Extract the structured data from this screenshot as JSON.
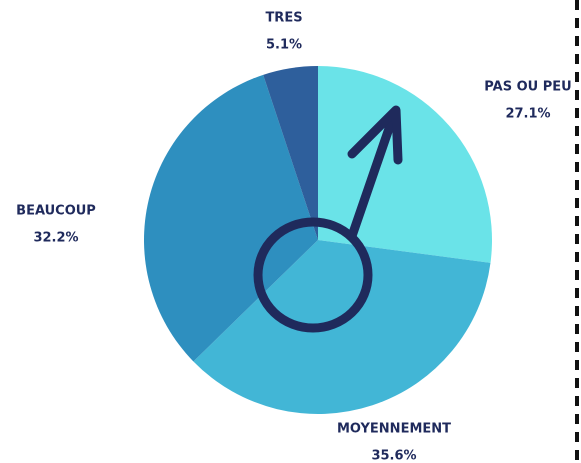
{
  "chart_data": {
    "type": "pie",
    "categories": [
      "PAS OU PEU",
      "MOYENNEMENT",
      "BEAUCOUP",
      "TRES"
    ],
    "values": [
      27.1,
      35.6,
      32.2,
      5.1
    ],
    "value_labels": [
      "27.1%",
      "35.6%",
      "32.2%",
      "5.1%"
    ],
    "colors": [
      "#6ae3e8",
      "#42b6d6",
      "#2e8fbf",
      "#2e5f9c"
    ]
  }
}
